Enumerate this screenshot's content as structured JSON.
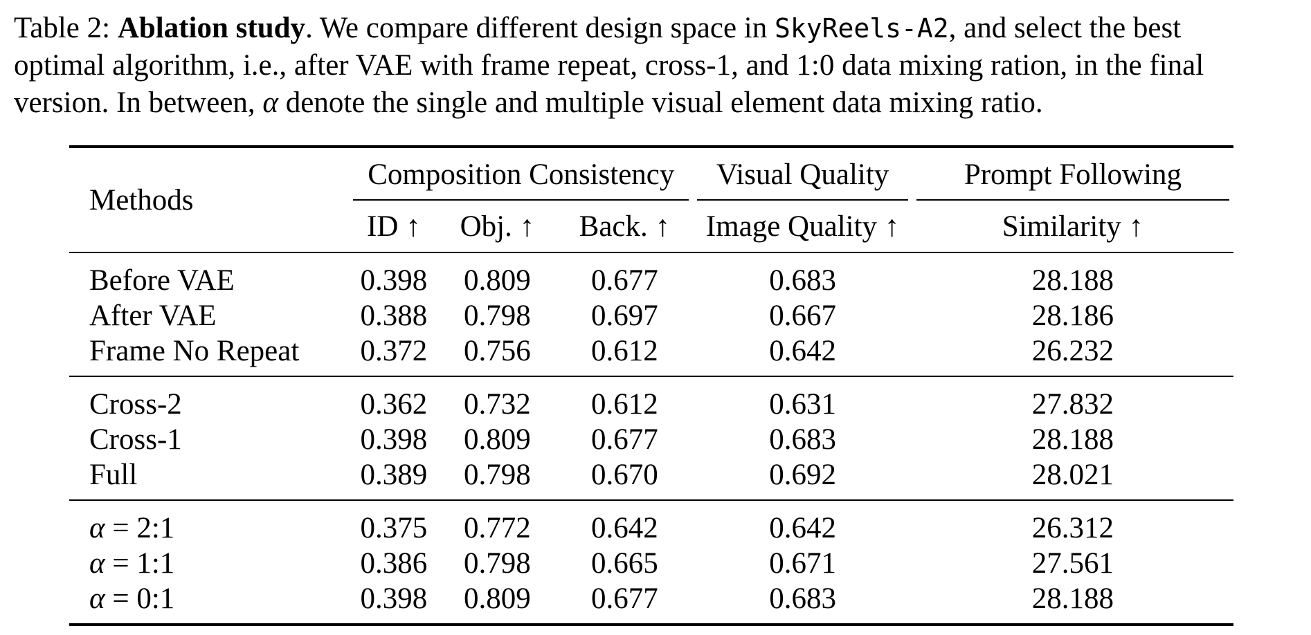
{
  "caption": {
    "label": "Table 2:",
    "title": "Ablation study",
    "line1_a": ". We compare different design space in ",
    "model_name": "SkyReels-A2",
    "line1_b": ", and select the best",
    "line2": "optimal algorithm, i.e., after VAE with frame repeat, cross-1, and 1:0 data mixing ration, in the final",
    "line3_a": "version. In between, ",
    "alpha_symbol": "α",
    "line3_b": " denote the single and multiple visual element data mixing ratio."
  },
  "table": {
    "header": {
      "methods": "Methods",
      "group_composition": "Composition Consistency",
      "group_visual": "Visual Quality",
      "group_prompt": "Prompt Following",
      "col_id": "ID ↑",
      "col_obj": "Obj. ↑",
      "col_back": "Back. ↑",
      "col_image_quality": "Image Quality ↑",
      "col_similarity": "Similarity ↑"
    },
    "rows": [
      {
        "method": "Before VAE",
        "id": "0.398",
        "obj": "0.809",
        "back": "0.677",
        "iq": "0.683",
        "sim": "28.188"
      },
      {
        "method": "After VAE",
        "id": "0.388",
        "obj": "0.798",
        "back": "0.697",
        "iq": "0.667",
        "sim": "28.186"
      },
      {
        "method": "Frame No Repeat",
        "id": "0.372",
        "obj": "0.756",
        "back": "0.612",
        "iq": "0.642",
        "sim": "26.232"
      },
      {
        "method": "Cross-2",
        "id": "0.362",
        "obj": "0.732",
        "back": "0.612",
        "iq": "0.631",
        "sim": "27.832"
      },
      {
        "method": "Cross-1",
        "id": "0.398",
        "obj": "0.809",
        "back": "0.677",
        "iq": "0.683",
        "sim": "28.188"
      },
      {
        "method": "Full",
        "id": "0.389",
        "obj": "0.798",
        "back": "0.670",
        "iq": "0.692",
        "sim": "28.021"
      },
      {
        "method_alpha": "α",
        "method": " = 2:1",
        "id": "0.375",
        "obj": "0.772",
        "back": "0.642",
        "iq": "0.642",
        "sim": "26.312"
      },
      {
        "method_alpha": "α",
        "method": " = 1:1",
        "id": "0.386",
        "obj": "0.798",
        "back": "0.665",
        "iq": "0.671",
        "sim": "27.561"
      },
      {
        "method_alpha": "α",
        "method": " = 0:1",
        "id": "0.398",
        "obj": "0.809",
        "back": "0.677",
        "iq": "0.683",
        "sim": "28.188"
      }
    ]
  }
}
